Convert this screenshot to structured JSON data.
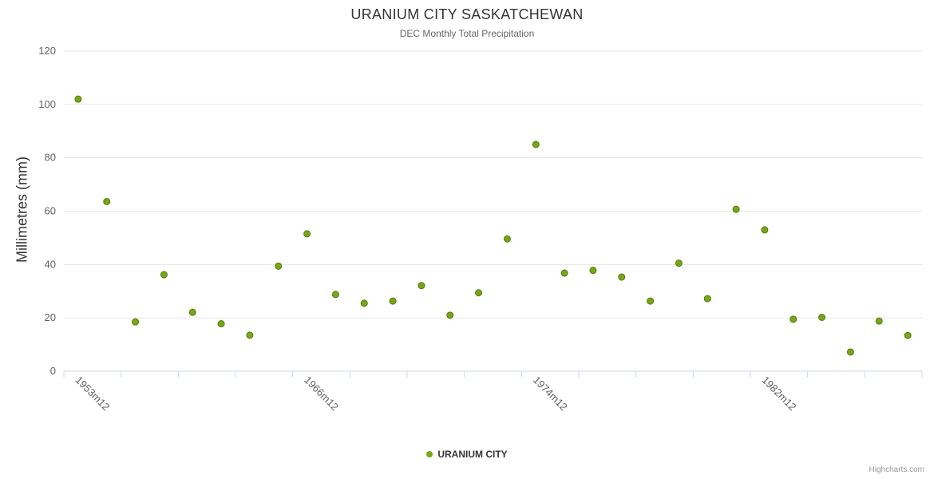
{
  "chart": {
    "title": "URANIUM CITY SASKATCHEWAN",
    "subtitle": "DEC Monthly Total Precipitation"
  },
  "legend": {
    "label": "URANIUM CITY"
  },
  "credits": {
    "text": "Highcharts.com"
  },
  "chart_data": {
    "type": "scatter",
    "title": "URANIUM CITY SASKATCHEWAN",
    "subtitle": "DEC Monthly Total Precipitation",
    "xlabel": "",
    "ylabel": "Millimetres (mm)",
    "ylim": [
      0,
      120
    ],
    "y_ticks": [
      0,
      20,
      40,
      60,
      80,
      100,
      120
    ],
    "n_points": 30,
    "x_tick_step": 2,
    "x_tick_labels": [
      {
        "index": 0,
        "label": "1953m12"
      },
      {
        "index": 8,
        "label": "1966m12"
      },
      {
        "index": 16,
        "label": "1974m12"
      },
      {
        "index": 24,
        "label": "1982m12"
      }
    ],
    "grid": "horizontal",
    "legend_position": "bottom",
    "series": [
      {
        "name": "URANIUM CITY",
        "values": [
          102,
          63.6,
          18.5,
          36.2,
          22.1,
          17.8,
          13.5,
          39.4,
          51.5,
          28.8,
          25.5,
          26.3,
          32.1,
          21.0,
          29.4,
          49.6,
          85.0,
          36.8,
          37.8,
          35.3,
          26.3,
          40.5,
          27.2,
          60.7,
          53.0,
          19.5,
          20.2,
          7.2,
          18.8,
          13.4
        ]
      }
    ],
    "colors": {
      "point_fill": "#77a716",
      "point_stroke": "#4f7a0e",
      "grid": "#e6e6e6",
      "axis_line": "#ccd6eb",
      "tick": "#ccd6eb",
      "label": "#606060"
    }
  }
}
